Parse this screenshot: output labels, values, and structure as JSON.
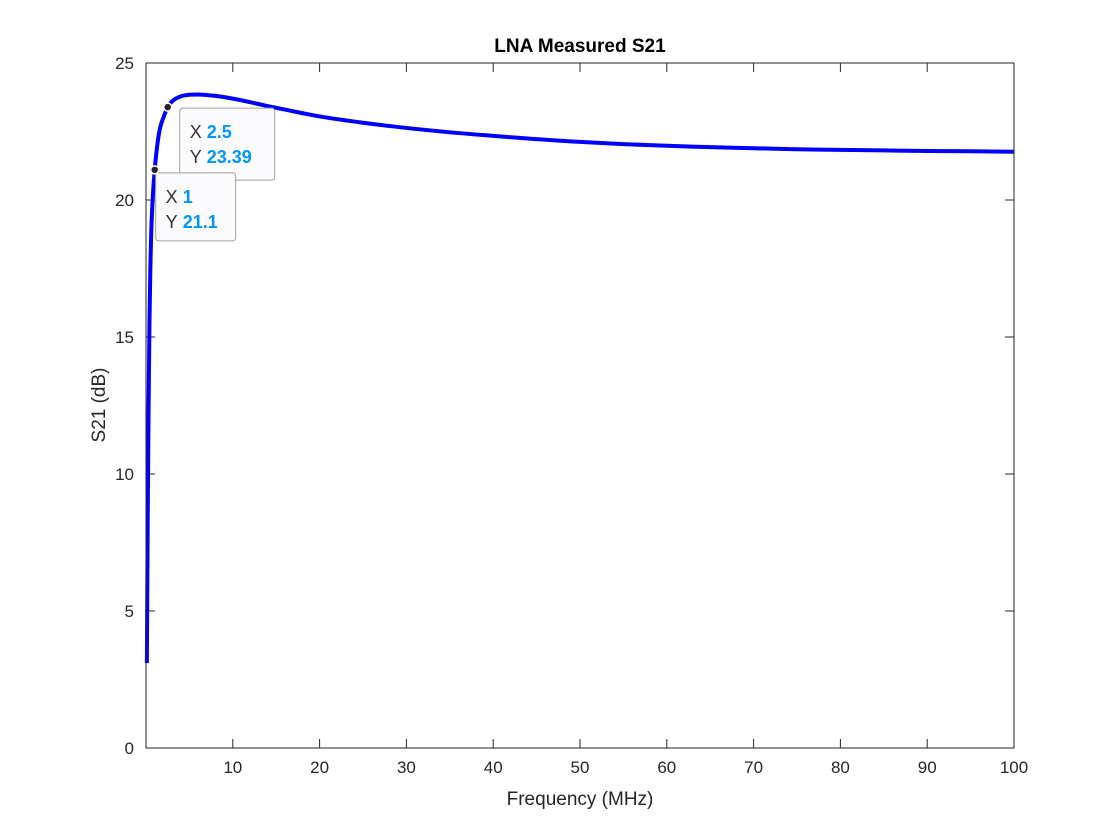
{
  "chart_data": {
    "type": "line",
    "title": "LNA Measured S21",
    "xlabel": "Frequency (MHz)",
    "ylabel": "S21 (dB)",
    "xlim": [
      0,
      100
    ],
    "ylim": [
      0,
      25
    ],
    "xticks": [
      10,
      20,
      30,
      40,
      50,
      60,
      70,
      80,
      90,
      100
    ],
    "yticks": [
      0,
      5,
      10,
      15,
      20,
      25
    ],
    "grid": false,
    "box": true,
    "series": [
      {
        "color": "#0000ff",
        "x": [
          0.1,
          0.2,
          0.3,
          0.4,
          0.5,
          0.6,
          0.8,
          1,
          1.3,
          1.6,
          2,
          2.5,
          3,
          4,
          5,
          6,
          7,
          8,
          10,
          12,
          14,
          16,
          18,
          20,
          25,
          30,
          35,
          40,
          45,
          50,
          55,
          60,
          65,
          70,
          75,
          80,
          85,
          90,
          95,
          100
        ],
        "y": [
          3.1,
          8.5,
          12.5,
          15.5,
          17.5,
          18.8,
          20.2,
          21.1,
          22.0,
          22.6,
          23.0,
          23.39,
          23.6,
          23.78,
          23.84,
          23.85,
          23.83,
          23.8,
          23.7,
          23.57,
          23.43,
          23.3,
          23.17,
          23.05,
          22.82,
          22.63,
          22.47,
          22.34,
          22.22,
          22.12,
          22.04,
          21.98,
          21.93,
          21.89,
          21.85,
          21.83,
          21.81,
          21.79,
          21.78,
          21.76
        ]
      }
    ],
    "annotations": [
      {
        "x": 2.5,
        "y": 23.39,
        "x_label": "X",
        "y_label": "Y",
        "x_text": "2.5",
        "y_text": "23.39"
      },
      {
        "x": 1,
        "y": 21.1,
        "x_label": "X",
        "y_label": "Y",
        "x_text": "1",
        "y_text": "21.1"
      }
    ],
    "colors": {
      "line": "#0000ff",
      "tip_value": "#0096ff",
      "axis": "#262626"
    }
  }
}
